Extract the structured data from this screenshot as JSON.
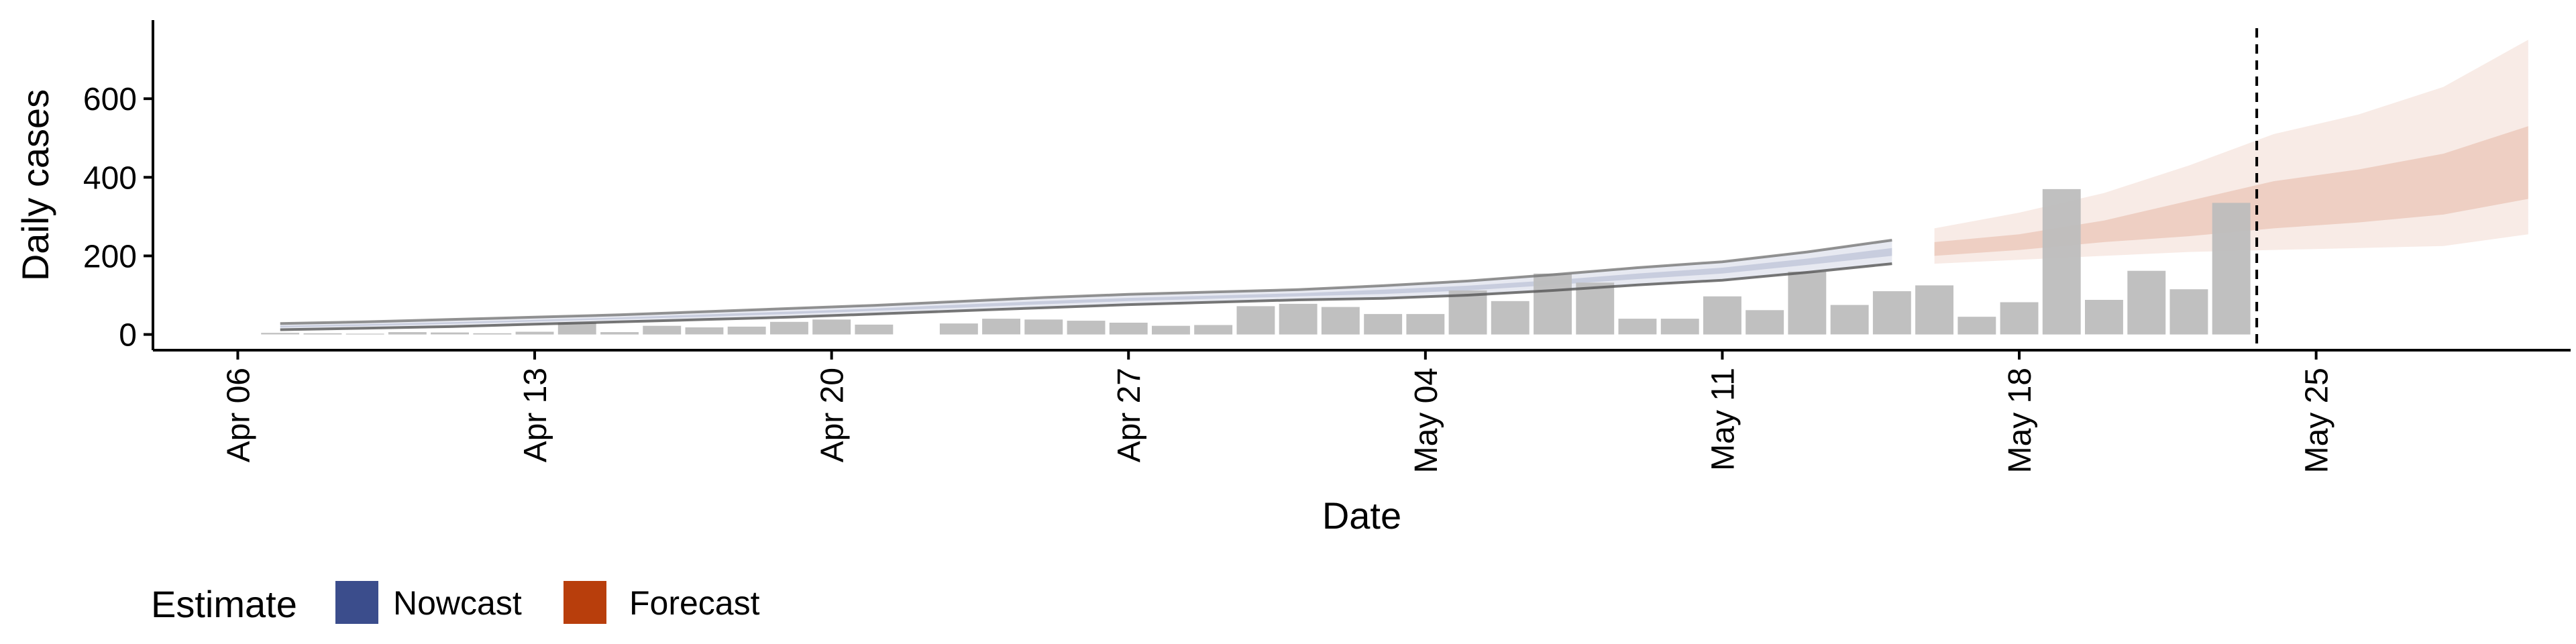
{
  "chart_data": {
    "type": "bar",
    "xlabel": "Date",
    "ylabel": "Daily cases",
    "x_tick_labels": [
      "Apr 06",
      "Apr 13",
      "Apr 20",
      "Apr 27",
      "May 04",
      "May 11",
      "May 18",
      "May 25"
    ],
    "x_tick_dates": [
      "2020-04-06",
      "2020-04-13",
      "2020-04-20",
      "2020-04-27",
      "2020-05-04",
      "2020-05-11",
      "2020-05-18",
      "2020-05-25"
    ],
    "x_range": [
      "2020-04-04",
      "2020-05-31"
    ],
    "y_ticks": [
      0,
      200,
      400,
      600
    ],
    "ylim": [
      -40,
      800
    ],
    "grid": false,
    "legend": {
      "title": "Estimate",
      "position": "bottom-left",
      "entries": [
        {
          "label": "Nowcast",
          "color": "#3B4D8C"
        },
        {
          "label": "Forecast",
          "color": "#B83E0C"
        }
      ]
    },
    "reported_cases": {
      "color": "#BDBDBD",
      "dates": [
        "2020-04-07",
        "2020-04-08",
        "2020-04-09",
        "2020-04-10",
        "2020-04-11",
        "2020-04-12",
        "2020-04-13",
        "2020-04-14",
        "2020-04-15",
        "2020-04-16",
        "2020-04-17",
        "2020-04-18",
        "2020-04-19",
        "2020-04-20",
        "2020-04-21",
        "2020-04-22",
        "2020-04-23",
        "2020-04-24",
        "2020-04-25",
        "2020-04-26",
        "2020-04-27",
        "2020-04-28",
        "2020-04-29",
        "2020-04-30",
        "2020-05-01",
        "2020-05-02",
        "2020-05-03",
        "2020-05-04",
        "2020-05-05",
        "2020-05-06",
        "2020-05-07",
        "2020-05-08",
        "2020-05-09",
        "2020-05-10",
        "2020-05-11",
        "2020-05-12",
        "2020-05-13",
        "2020-05-14",
        "2020-05-15",
        "2020-05-16",
        "2020-05-17",
        "2020-05-18",
        "2020-05-19",
        "2020-05-20",
        "2020-05-21",
        "2020-05-22",
        "2020-05-23"
      ],
      "values": [
        4,
        3,
        2,
        6,
        5,
        3,
        7,
        30,
        6,
        22,
        18,
        20,
        32,
        38,
        25,
        0,
        28,
        40,
        38,
        35,
        30,
        22,
        24,
        72,
        78,
        70,
        52,
        52,
        112,
        85,
        155,
        132,
        40,
        40,
        97,
        62,
        160,
        75,
        110,
        125,
        45,
        82,
        370,
        88,
        162,
        115,
        335
      ]
    },
    "nowcast": {
      "color": "#3B4D8C",
      "dates": [
        "2020-04-07",
        "2020-04-09",
        "2020-04-11",
        "2020-04-13",
        "2020-04-15",
        "2020-04-17",
        "2020-04-19",
        "2020-04-21",
        "2020-04-23",
        "2020-04-25",
        "2020-04-27",
        "2020-04-29",
        "2020-05-01",
        "2020-05-03",
        "2020-05-05",
        "2020-05-07",
        "2020-05-09",
        "2020-05-11",
        "2020-05-13",
        "2020-05-15"
      ],
      "lower_90": [
        12,
        16,
        20,
        26,
        32,
        38,
        44,
        52,
        60,
        68,
        76,
        82,
        88,
        92,
        100,
        112,
        126,
        138,
        158,
        180
      ],
      "upper_90": [
        28,
        32,
        38,
        44,
        50,
        58,
        66,
        74,
        84,
        94,
        102,
        108,
        114,
        124,
        136,
        152,
        170,
        185,
        210,
        240
      ],
      "lower_50": [
        18,
        22,
        27,
        33,
        39,
        45,
        52,
        60,
        68,
        77,
        85,
        91,
        97,
        103,
        112,
        126,
        141,
        155,
        177,
        200
      ],
      "upper_50": [
        22,
        26,
        31,
        37,
        43,
        51,
        58,
        66,
        76,
        85,
        93,
        99,
        105,
        114,
        124,
        138,
        155,
        170,
        193,
        220
      ]
    },
    "forecast": {
      "color": "#B83E0C",
      "dates": [
        "2020-05-16",
        "2020-05-18",
        "2020-05-20",
        "2020-05-22",
        "2020-05-24",
        "2020-05-26",
        "2020-05-28",
        "2020-05-30"
      ],
      "lower_90": [
        180,
        190,
        200,
        210,
        215,
        220,
        225,
        255
      ],
      "upper_90": [
        270,
        310,
        360,
        430,
        510,
        560,
        630,
        750
      ],
      "lower_50": [
        200,
        215,
        235,
        250,
        270,
        285,
        305,
        345
      ],
      "upper_50": [
        235,
        255,
        290,
        340,
        390,
        420,
        460,
        530
      ]
    },
    "reference_line": {
      "date": "2020-05-23",
      "style": "dashed"
    }
  }
}
